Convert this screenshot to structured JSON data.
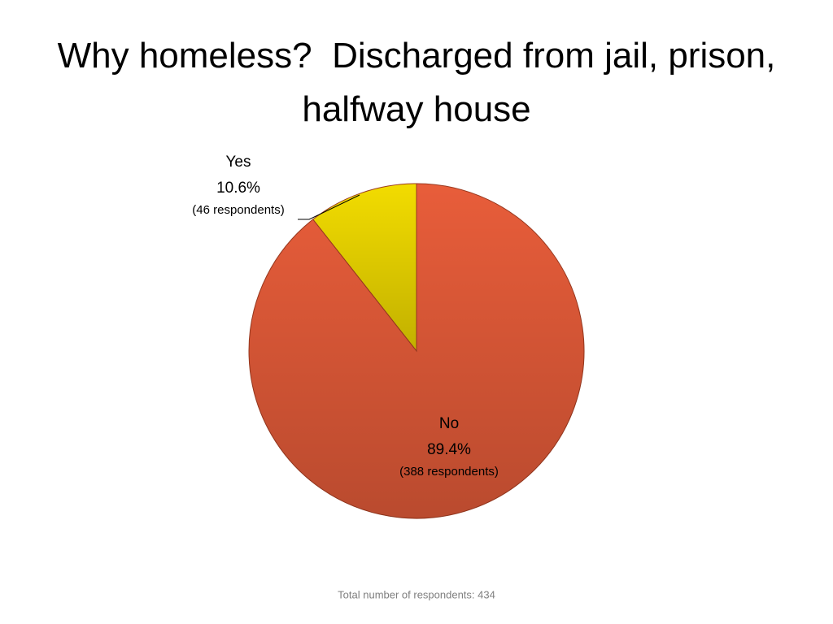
{
  "chart_data": {
    "type": "pie",
    "title": "Why homeless?  Discharged from jail, prison, halfway house",
    "categories": [
      "Yes",
      "No"
    ],
    "values": [
      10.6,
      89.4
    ],
    "value_labels": [
      "10.6%",
      "89.4%"
    ],
    "count_labels": [
      "(46 respondents)",
      "(388 respondents)"
    ],
    "colors": [
      "#f2dc00",
      "#e85d3a"
    ],
    "note": "Total number of respondents: 434"
  }
}
